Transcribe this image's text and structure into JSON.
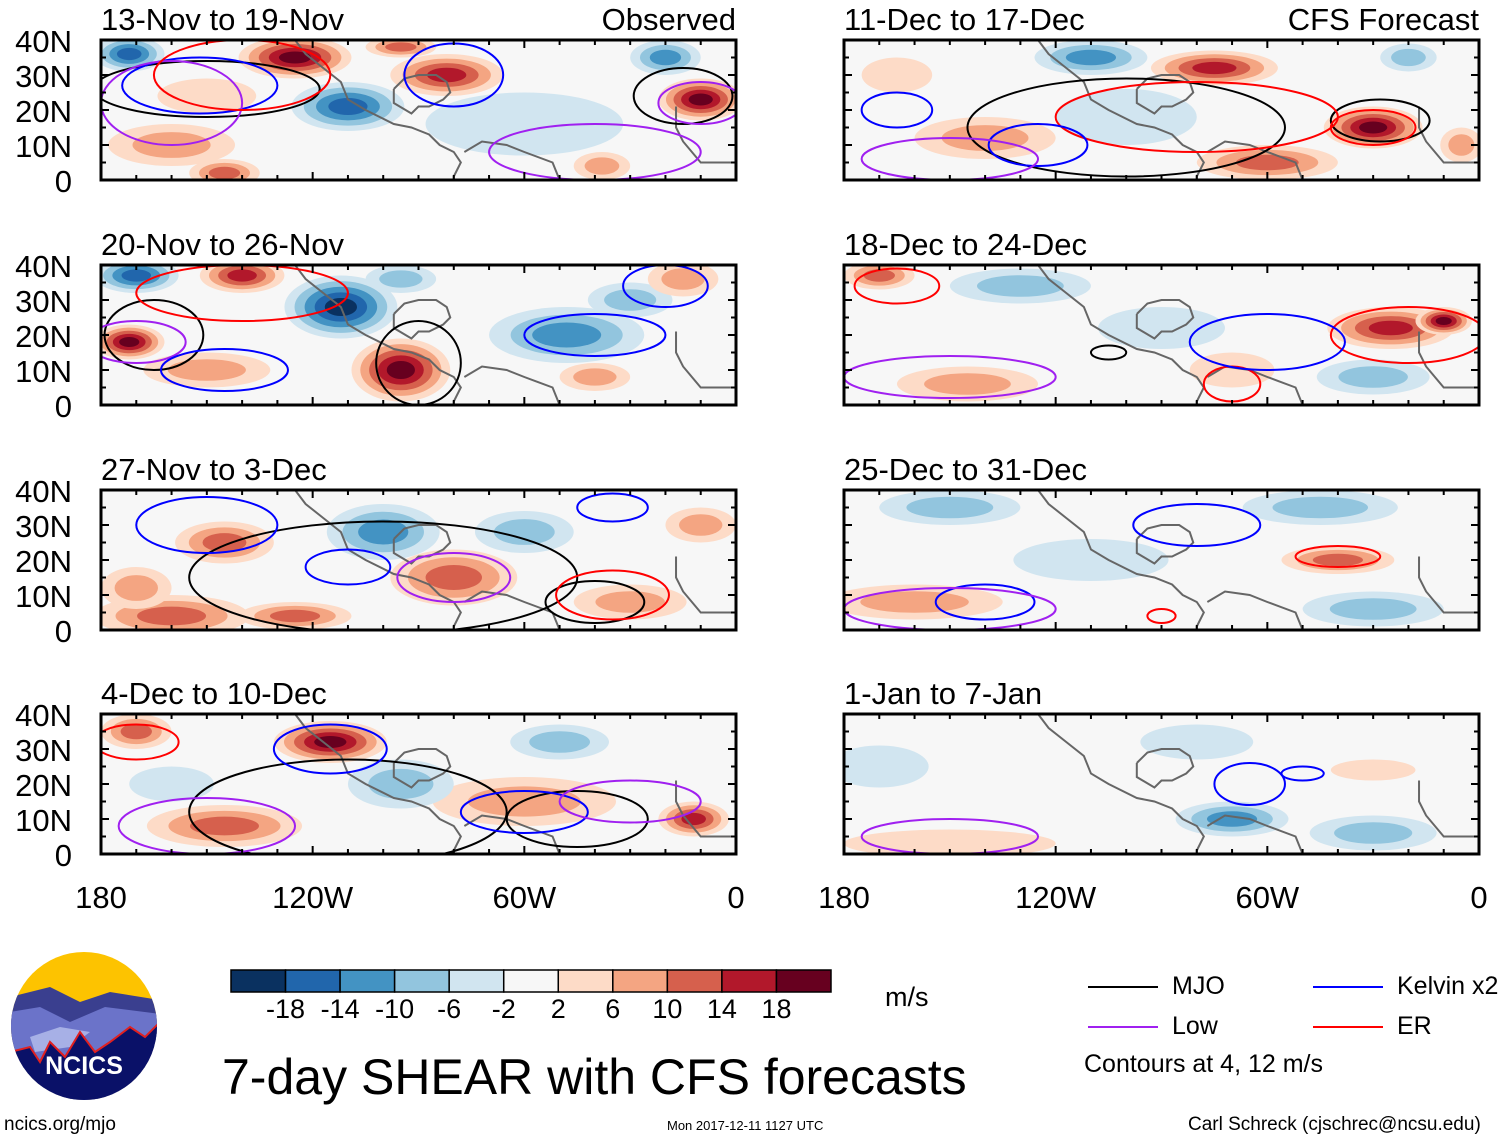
{
  "chart_data": {
    "type": "heatmap",
    "title": "7-day SHEAR with CFS forecasts",
    "colorbar": {
      "units": "m/s",
      "ticks": [
        "-18",
        "-14",
        "-10",
        "-6",
        "-2",
        "2",
        "6",
        "10",
        "14",
        "18"
      ],
      "colors": [
        "#0a3160",
        "#2166ac",
        "#4393c3",
        "#92c5de",
        "#d1e5f0",
        "#f7f7f7",
        "#fddbc7",
        "#f4a582",
        "#d6604d",
        "#b2182b",
        "#67001f"
      ]
    },
    "y_ticks": [
      "40N",
      "30N",
      "20N",
      "10N",
      "0"
    ],
    "x_ticks": [
      "180",
      "120W",
      "60W",
      "0"
    ],
    "xlim_lonW": [
      180,
      0
    ],
    "ylim_lat": [
      0,
      40
    ],
    "legend": {
      "items": [
        {
          "label": "MJO",
          "color": "#000000"
        },
        {
          "label": "Kelvin x2",
          "color": "#0000ff"
        },
        {
          "label": "Low",
          "color": "#a020f0"
        },
        {
          "label": "ER",
          "color": "#ff0000"
        }
      ],
      "note": "Contours at 4, 12 m/s"
    },
    "panels": [
      {
        "title": "13-Nov to 19-Nov",
        "tag": "Observed",
        "col": 0,
        "row": 0,
        "blobs": [
          [
            172,
            36,
            10,
            5,
            -16
          ],
          [
            110,
            21,
            16,
            7,
            -14
          ],
          [
            125,
            35,
            16,
            6,
            19
          ],
          [
            82,
            30,
            16,
            6,
            16
          ],
          [
            10,
            23,
            12,
            6,
            19
          ],
          [
            160,
            10,
            18,
            6,
            10
          ],
          [
            145,
            2,
            10,
            4,
            14
          ],
          [
            20,
            35,
            10,
            5,
            -10
          ],
          [
            60,
            16,
            28,
            9,
            -4
          ],
          [
            38,
            4,
            8,
            4,
            10
          ],
          [
            150,
            24,
            14,
            5,
            6
          ],
          [
            95,
            38,
            10,
            3,
            12
          ]
        ],
        "contours": [
          [
            150,
            26,
            32,
            8,
            "mjo"
          ],
          [
            15,
            24,
            14,
            8,
            "mjo"
          ],
          [
            152,
            27,
            22,
            8,
            "kelvin"
          ],
          [
            80,
            30,
            14,
            9,
            "kelvin"
          ],
          [
            160,
            22,
            20,
            12,
            "low"
          ],
          [
            40,
            8,
            30,
            8,
            "low"
          ],
          [
            140,
            30,
            25,
            10,
            "er"
          ],
          [
            10,
            22,
            12,
            6,
            "low"
          ]
        ]
      },
      {
        "title": "20-Nov to 26-Nov",
        "tag": "",
        "col": 0,
        "row": 1,
        "blobs": [
          [
            170,
            37,
            12,
            5,
            -14
          ],
          [
            112,
            28,
            16,
            9,
            -19
          ],
          [
            172,
            18,
            10,
            5,
            19
          ],
          [
            140,
            37,
            12,
            5,
            16
          ],
          [
            95,
            10,
            14,
            9,
            19
          ],
          [
            150,
            10,
            18,
            5,
            10
          ],
          [
            48,
            20,
            22,
            8,
            -10
          ],
          [
            30,
            30,
            12,
            5,
            -6
          ],
          [
            40,
            8,
            10,
            4,
            8
          ],
          [
            15,
            36,
            10,
            5,
            10
          ],
          [
            95,
            36,
            10,
            4,
            -8
          ]
        ],
        "contours": [
          [
            165,
            20,
            14,
            10,
            "mjo"
          ],
          [
            90,
            12,
            12,
            12,
            "mjo"
          ],
          [
            40,
            20,
            20,
            6,
            "kelvin"
          ],
          [
            20,
            34,
            12,
            6,
            "kelvin"
          ],
          [
            140,
            32,
            30,
            8,
            "er"
          ],
          [
            170,
            18,
            14,
            6,
            "low"
          ],
          [
            145,
            10,
            18,
            6,
            "kelvin"
          ]
        ]
      },
      {
        "title": "27-Nov to 3-Dec",
        "tag": "",
        "col": 0,
        "row": 2,
        "blobs": [
          [
            145,
            25,
            14,
            6,
            12
          ],
          [
            100,
            28,
            16,
            8,
            -10
          ],
          [
            160,
            4,
            22,
            6,
            12
          ],
          [
            125,
            4,
            16,
            4,
            14
          ],
          [
            80,
            15,
            18,
            8,
            12
          ],
          [
            60,
            28,
            14,
            6,
            -8
          ],
          [
            30,
            8,
            16,
            5,
            10
          ],
          [
            10,
            30,
            10,
            5,
            8
          ],
          [
            170,
            12,
            10,
            6,
            8
          ]
        ],
        "contours": [
          [
            100,
            15,
            55,
            16,
            "mjo"
          ],
          [
            40,
            8,
            14,
            6,
            "mjo"
          ],
          [
            110,
            18,
            12,
            5,
            "kelvin"
          ],
          [
            150,
            30,
            20,
            8,
            "kelvin"
          ],
          [
            35,
            10,
            16,
            7,
            "er"
          ],
          [
            80,
            15,
            16,
            7,
            "low"
          ],
          [
            35,
            35,
            10,
            4,
            "kelvin"
          ]
        ]
      },
      {
        "title": "4-Dec to 10-Dec",
        "tag": "",
        "col": 0,
        "row": 3,
        "blobs": [
          [
            170,
            35,
            10,
            5,
            12
          ],
          [
            115,
            32,
            16,
            6,
            19
          ],
          [
            145,
            8,
            22,
            6,
            14
          ],
          [
            60,
            15,
            26,
            7,
            10
          ],
          [
            12,
            10,
            10,
            5,
            16
          ],
          [
            95,
            20,
            15,
            7,
            -8
          ],
          [
            50,
            32,
            14,
            5,
            -6
          ],
          [
            160,
            20,
            12,
            5,
            -4
          ]
        ],
        "contours": [
          [
            110,
            12,
            45,
            15,
            "mjo"
          ],
          [
            45,
            10,
            20,
            8,
            "mjo"
          ],
          [
            115,
            30,
            16,
            7,
            "kelvin"
          ],
          [
            60,
            12,
            18,
            6,
            "kelvin"
          ],
          [
            150,
            8,
            25,
            8,
            "low"
          ],
          [
            170,
            32,
            12,
            5,
            "er"
          ],
          [
            30,
            15,
            20,
            6,
            "low"
          ]
        ]
      },
      {
        "title": "11-Dec to 17-Dec",
        "tag": "CFS Forecast",
        "col": 1,
        "row": 0,
        "blobs": [
          [
            110,
            35,
            16,
            5,
            -10
          ],
          [
            75,
            32,
            18,
            5,
            16
          ],
          [
            30,
            15,
            14,
            6,
            19
          ],
          [
            60,
            5,
            20,
            5,
            14
          ],
          [
            140,
            12,
            20,
            6,
            10
          ],
          [
            165,
            30,
            10,
            5,
            6
          ],
          [
            20,
            35,
            8,
            4,
            -8
          ],
          [
            100,
            18,
            20,
            8,
            -4
          ],
          [
            5,
            10,
            6,
            5,
            10
          ]
        ],
        "contours": [
          [
            100,
            15,
            45,
            14,
            "mjo"
          ],
          [
            28,
            17,
            14,
            6,
            "mjo"
          ],
          [
            80,
            18,
            40,
            10,
            "er"
          ],
          [
            30,
            15,
            12,
            5,
            "er"
          ],
          [
            125,
            10,
            14,
            6,
            "kelvin"
          ],
          [
            150,
            6,
            25,
            6,
            "low"
          ],
          [
            165,
            20,
            10,
            5,
            "kelvin"
          ]
        ]
      },
      {
        "title": "18-Dec to 24-Dec",
        "tag": "",
        "col": 1,
        "row": 1,
        "blobs": [
          [
            170,
            37,
            10,
            4,
            14
          ],
          [
            130,
            34,
            20,
            5,
            -6
          ],
          [
            25,
            22,
            18,
            6,
            16
          ],
          [
            10,
            24,
            8,
            4,
            19
          ],
          [
            145,
            6,
            20,
            5,
            8
          ],
          [
            70,
            10,
            12,
            5,
            6
          ],
          [
            30,
            8,
            16,
            5,
            -8
          ],
          [
            90,
            22,
            18,
            6,
            -2
          ]
        ],
        "contours": [
          [
            20,
            20,
            22,
            8,
            "er"
          ],
          [
            70,
            6,
            8,
            5,
            "er"
          ],
          [
            60,
            18,
            22,
            8,
            "kelvin"
          ],
          [
            150,
            8,
            30,
            6,
            "low"
          ],
          [
            105,
            15,
            5,
            2,
            "mjo"
          ],
          [
            165,
            34,
            12,
            5,
            "er"
          ]
        ]
      },
      {
        "title": "25-Dec to 31-Dec",
        "tag": "",
        "col": 1,
        "row": 2,
        "blobs": [
          [
            150,
            35,
            20,
            5,
            -8
          ],
          [
            45,
            35,
            22,
            5,
            -6
          ],
          [
            40,
            20,
            16,
            4,
            12
          ],
          [
            160,
            8,
            25,
            5,
            8
          ],
          [
            30,
            6,
            20,
            5,
            -8
          ],
          [
            110,
            20,
            22,
            6,
            -2
          ]
        ],
        "contours": [
          [
            40,
            21,
            12,
            3,
            "er"
          ],
          [
            80,
            30,
            18,
            6,
            "kelvin"
          ],
          [
            140,
            8,
            14,
            5,
            "kelvin"
          ],
          [
            150,
            6,
            30,
            6,
            "low"
          ],
          [
            90,
            4,
            4,
            2,
            "er"
          ]
        ]
      },
      {
        "title": "1-Jan to 7-Jan",
        "tag": "",
        "col": 1,
        "row": 3,
        "blobs": [
          [
            170,
            25,
            14,
            6,
            -4
          ],
          [
            80,
            32,
            16,
            5,
            -4
          ],
          [
            70,
            10,
            16,
            5,
            -10
          ],
          [
            30,
            6,
            18,
            5,
            -8
          ],
          [
            150,
            3,
            30,
            4,
            6
          ],
          [
            30,
            24,
            12,
            3,
            4
          ]
        ],
        "contours": [
          [
            65,
            20,
            10,
            6,
            "kelvin"
          ],
          [
            50,
            23,
            6,
            2,
            "kelvin"
          ],
          [
            150,
            5,
            25,
            5,
            "low"
          ]
        ]
      }
    ]
  },
  "footer": {
    "logo_text": "NCICS",
    "url": "ncics.org/mjo",
    "timestamp": "Mon 2017-12-11 1127 UTC",
    "author": "Carl Schreck (cjschrec@ncsu.edu)"
  }
}
